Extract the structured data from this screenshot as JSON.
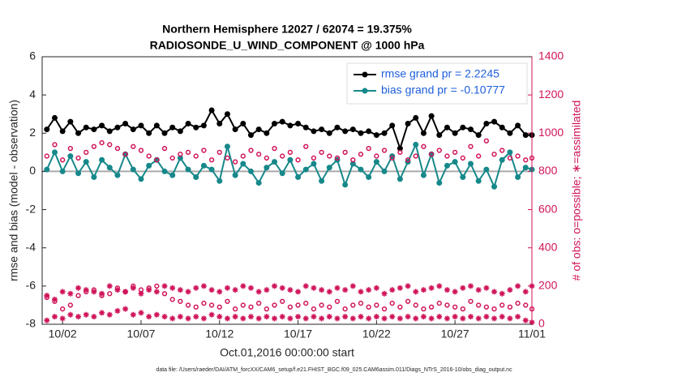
{
  "chart_data": {
    "type": "line",
    "title": "Northern Hemisphere 12027 / 62074 = 19.375%",
    "subtitle": "RADIOSONDE_U_WIND_COMPONENT @ 1000 hPa",
    "xlabel": "Oct.01,2016 00:00:00 start",
    "ylabel": "rmse and bias (model - observation)",
    "y2label": "# of obs: o=possible; ∗=assimilated",
    "footnote": "data file: /Users/raeder/DAI/ATM_forcXX/CAM6_setup/f.e21.FHIST_BGC.f09_025.CAM6assim.011/Diags_NTrS_2016-10/obs_diag_output.nc",
    "xlim": [
      0.7,
      31.9
    ],
    "xticks": [
      {
        "value": 2,
        "label": "10/02"
      },
      {
        "value": 7,
        "label": "10/07"
      },
      {
        "value": 12,
        "label": "10/12"
      },
      {
        "value": 17,
        "label": "10/17"
      },
      {
        "value": 22,
        "label": "10/22"
      },
      {
        "value": 27,
        "label": "10/27"
      },
      {
        "value": 31.9,
        "label": "11/01"
      }
    ],
    "ylim": [
      -8,
      6
    ],
    "yticks": [
      -8,
      -6,
      -4,
      -2,
      0,
      2,
      4,
      6
    ],
    "y2lim": [
      0,
      1400
    ],
    "y2ticks": [
      0,
      200,
      400,
      600,
      800,
      1000,
      1200,
      1400
    ],
    "y2color": "#d0145a",
    "legend": "upper right",
    "x": [
      1,
      1.5,
      2,
      2.5,
      3,
      3.5,
      4,
      4.5,
      5,
      5.5,
      6,
      6.5,
      7,
      7.5,
      8,
      8.5,
      9,
      9.5,
      10,
      10.5,
      11,
      11.5,
      12,
      12.5,
      13,
      13.5,
      14,
      14.5,
      15,
      15.5,
      16,
      16.5,
      17,
      17.5,
      18,
      18.5,
      19,
      19.5,
      20,
      20.5,
      21,
      21.5,
      22,
      22.5,
      23,
      23.5,
      24,
      24.5,
      25,
      25.5,
      26,
      26.5,
      27,
      27.5,
      28,
      28.5,
      29,
      29.5,
      30,
      30.5,
      31,
      31.5,
      31.9
    ],
    "series": [
      {
        "name": "rmse grand pr = 2.2245",
        "color": "#000000",
        "marker": "circle",
        "line": true,
        "values": [
          2.2,
          2.8,
          2.1,
          2.6,
          2.0,
          2.3,
          2.2,
          2.4,
          2.1,
          2.3,
          2.5,
          2.2,
          2.4,
          2.0,
          2.4,
          2.0,
          2.3,
          2.1,
          2.5,
          2.3,
          2.4,
          3.2,
          2.5,
          3.0,
          2.2,
          2.5,
          1.9,
          2.2,
          2.0,
          2.5,
          2.6,
          2.4,
          2.5,
          2.3,
          2.1,
          2.2,
          2.0,
          2.3,
          2.1,
          2.2,
          2.0,
          2.1,
          1.9,
          2.0,
          2.4,
          1.2,
          2.5,
          2.8,
          2.0,
          2.9,
          1.9,
          2.3,
          2.0,
          2.3,
          2.2,
          1.9,
          2.5,
          2.6,
          2.3,
          2.0,
          2.4,
          1.9,
          1.9
        ]
      },
      {
        "name": "bias grand pr = -0.10777",
        "color": "#17888a",
        "marker": "circle",
        "line": true,
        "values": [
          0.1,
          1.0,
          0.0,
          0.8,
          -0.1,
          0.5,
          -0.3,
          0.6,
          0.2,
          -0.2,
          0.9,
          0.1,
          -0.4,
          0.3,
          0.6,
          0.0,
          -0.2,
          0.7,
          0.1,
          -0.3,
          0.3,
          0.1,
          -0.5,
          1.3,
          -0.2,
          0.4,
          0.0,
          -0.6,
          0.2,
          0.5,
          -0.1,
          0.6,
          -0.3,
          0.1,
          0.4,
          -0.5,
          0.2,
          0.6,
          -0.7,
          0.4,
          0.1,
          -0.3,
          0.5,
          0.0,
          0.8,
          -0.4,
          0.5,
          1.4,
          -0.2,
          0.9,
          -0.6,
          0.3,
          0.5,
          -0.3,
          0.4,
          -0.5,
          0.1,
          -0.8,
          0.6,
          1.0,
          -0.3,
          0.2,
          0.1
        ]
      },
      {
        "color": "#d0145a",
        "marker": "open-circle",
        "line": false,
        "axis": "y2",
        "values": [
          880,
          940,
          860,
          920,
          870,
          900,
          930,
          950,
          940,
          920,
          890,
          930,
          910,
          880,
          860,
          920,
          870,
          890,
          900,
          880,
          910,
          860,
          900,
          870,
          850,
          880,
          910,
          890,
          870,
          920,
          880,
          900,
          860,
          930,
          870,
          900,
          880,
          870,
          900,
          860,
          890,
          920,
          880,
          910,
          870,
          900,
          860,
          880,
          930,
          890,
          910,
          880,
          900,
          870,
          930,
          880,
          960,
          890,
          910,
          870,
          880,
          860,
          870
        ]
      },
      {
        "color": "#d0145a",
        "marker": "asterisk",
        "line": false,
        "axis": "y2",
        "values": [
          150,
          130,
          170,
          160,
          190,
          180,
          170,
          160,
          200,
          180,
          170,
          190,
          160,
          180,
          170,
          200,
          190,
          180,
          170,
          190,
          200,
          180,
          170,
          190,
          180,
          200,
          190,
          170,
          180,
          200,
          190,
          180,
          170,
          200,
          190,
          180,
          170,
          190,
          180,
          200,
          170,
          180,
          190,
          160,
          180,
          190,
          200,
          170,
          180,
          190,
          200,
          180,
          170,
          190,
          200,
          180,
          190,
          170,
          160,
          180,
          200,
          170,
          200
        ]
      },
      {
        "color": "#d0145a",
        "marker": "open-circle",
        "line": false,
        "axis": "y2",
        "values": [
          140,
          120,
          80,
          100,
          150,
          170,
          180,
          150,
          160,
          190,
          170,
          200,
          180,
          190,
          200,
          160,
          130,
          120,
          100,
          90,
          110,
          100,
          90,
          120,
          80,
          100,
          90,
          110,
          80,
          100,
          120,
          90,
          100,
          110,
          80,
          100,
          90,
          120,
          80,
          100,
          110,
          90,
          100,
          80,
          110,
          90,
          120,
          100,
          80,
          90,
          110,
          100,
          90,
          80,
          120,
          100,
          90,
          80,
          100,
          90,
          110,
          100,
          80
        ]
      },
      {
        "color": "#d0145a",
        "marker": "asterisk",
        "line": false,
        "axis": "y2",
        "values": [
          20,
          40,
          30,
          50,
          40,
          50,
          40,
          60,
          50,
          70,
          80,
          50,
          60,
          40,
          50,
          40,
          30,
          40,
          30,
          40,
          30,
          50,
          40,
          30,
          40,
          30,
          40,
          30,
          40,
          30,
          40,
          30,
          40,
          30,
          40,
          30,
          40,
          30,
          40,
          30,
          40,
          30,
          40,
          30,
          40,
          30,
          40,
          30,
          40,
          30,
          40,
          30,
          40,
          30,
          40,
          30,
          40,
          30,
          40,
          30,
          40,
          20,
          10
        ]
      }
    ]
  }
}
